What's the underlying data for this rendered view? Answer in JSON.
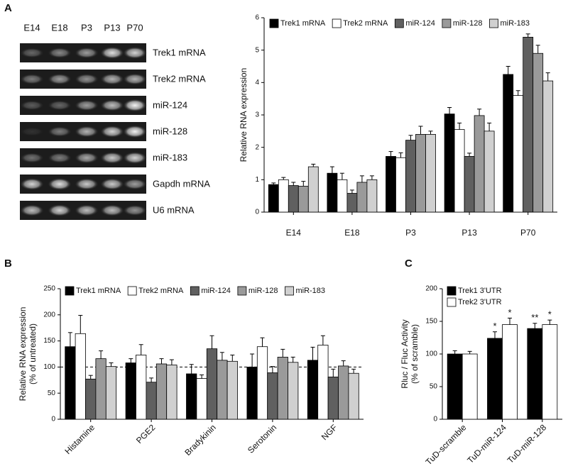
{
  "gel": {
    "panel": "A",
    "lanes": [
      "E14",
      "E18",
      "P3",
      "P13",
      "P70"
    ],
    "rows": [
      "Trek1 mRNA",
      "Trek2 mRNA",
      "miR-124",
      "miR-128",
      "miR-183",
      "Gapdh mRNA",
      "U6 mRNA"
    ]
  },
  "chart_data": [
    {
      "type": "bar",
      "ylabel": [
        "Relative RNA expression"
      ],
      "categories": [
        "E14",
        "E18",
        "P3",
        "P13",
        "P70"
      ],
      "ylim": [
        0,
        6
      ],
      "yticks": [
        0,
        1,
        2,
        3,
        4,
        5,
        6
      ],
      "legend": "top",
      "series": [
        {
          "name": "Trek1 mRNA",
          "color": "#000000",
          "values": [
            0.85,
            1.2,
            1.72,
            3.03,
            4.25
          ],
          "errors": [
            0.05,
            0.2,
            0.15,
            0.2,
            0.25
          ]
        },
        {
          "name": "Trek2 mRNA",
          "color": "#ffffff",
          "values": [
            1.0,
            1.0,
            1.68,
            2.55,
            3.6
          ],
          "errors": [
            0.07,
            0.2,
            0.15,
            0.2,
            0.15
          ]
        },
        {
          "name": "miR-124",
          "color": "#606060",
          "values": [
            0.82,
            0.58,
            2.22,
            1.72,
            5.4
          ],
          "errors": [
            0.1,
            0.1,
            0.15,
            0.1,
            0.1
          ]
        },
        {
          "name": "miR-128",
          "color": "#9a9a9a",
          "values": [
            0.8,
            0.92,
            2.4,
            2.98,
            4.9
          ],
          "errors": [
            0.15,
            0.2,
            0.25,
            0.2,
            0.25
          ]
        },
        {
          "name": "miR-183",
          "color": "#d0d0d0",
          "values": [
            1.4,
            1.0,
            2.4,
            2.5,
            4.05
          ],
          "errors": [
            0.08,
            0.12,
            0.1,
            0.25,
            0.25
          ]
        }
      ]
    },
    {
      "type": "bar",
      "panel": "B",
      "ylabel": [
        "Relative RNA expression",
        "(% of untreated)"
      ],
      "categories": [
        "Histamine",
        "PGE2",
        "Bradykinin",
        "Serotonin",
        "NGF"
      ],
      "ylim": [
        0,
        250
      ],
      "yticks": [
        0,
        50,
        100,
        150,
        200,
        250
      ],
      "reference_line": 100,
      "legend": "top",
      "series": [
        {
          "name": "Trek1 mRNA",
          "color": "#000000",
          "values": [
            139,
            108,
            87,
            100,
            113
          ],
          "errors": [
            27,
            8,
            18,
            25,
            25
          ]
        },
        {
          "name": "Trek2 mRNA",
          "color": "#ffffff",
          "values": [
            164,
            123,
            78,
            139,
            142
          ],
          "errors": [
            35,
            20,
            7,
            17,
            18
          ]
        },
        {
          "name": "miR-124",
          "color": "#606060",
          "values": [
            77,
            71,
            135,
            89,
            81
          ],
          "errors": [
            7,
            8,
            25,
            12,
            15
          ]
        },
        {
          "name": "miR-128",
          "color": "#9a9a9a",
          "values": [
            116,
            106,
            113,
            119,
            102
          ],
          "errors": [
            15,
            10,
            15,
            15,
            10
          ]
        },
        {
          "name": "miR-183",
          "color": "#d0d0d0",
          "values": [
            101,
            104,
            111,
            109,
            88
          ],
          "errors": [
            7,
            10,
            12,
            10,
            8
          ]
        }
      ]
    },
    {
      "type": "bar",
      "panel": "C",
      "ylabel": [
        "Rluc / Fluc Activity",
        "(% of scramble)"
      ],
      "categories": [
        "TuD-scramble",
        "TuD-miR-124",
        "TuD-miR-128"
      ],
      "ylim": [
        0,
        200
      ],
      "yticks": [
        0,
        50,
        100,
        150,
        200
      ],
      "legend": "top-left",
      "series": [
        {
          "name": "Trek1 3'UTR",
          "color": "#000000",
          "values": [
            100,
            124,
            139
          ],
          "errors": [
            5,
            10,
            8
          ],
          "significance": [
            null,
            "*",
            "**"
          ]
        },
        {
          "name": "Trek2 3'UTR",
          "color": "#ffffff",
          "values": [
            100,
            145,
            145
          ],
          "errors": [
            4,
            10,
            7
          ],
          "significance": [
            null,
            "*",
            "*"
          ]
        }
      ]
    }
  ]
}
